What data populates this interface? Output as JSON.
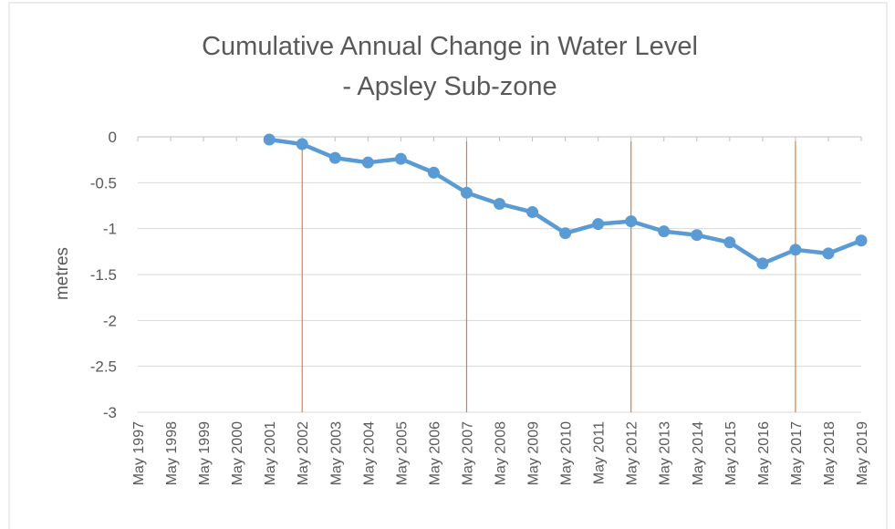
{
  "chart_data": {
    "type": "line",
    "title": [
      "Cumulative Annual Change in Water Level",
      "- Apsley Sub-zone"
    ],
    "y_label": "metres",
    "categories": [
      "May 1997",
      "May 1998",
      "May 1999",
      "May 2000",
      "May 2001",
      "May 2002",
      "May 2003",
      "May 2004",
      "May 2005",
      "May 2006",
      "May 2007",
      "May 2008",
      "May 2009",
      "May 2010",
      "May 2011",
      "May 2012",
      "May 2013",
      "May 2014",
      "May 2015",
      "May 2016",
      "May 2017",
      "May 2018",
      "May 2019"
    ],
    "series": [
      {
        "name": "Water Level",
        "color": "#5b9bd5",
        "values": [
          null,
          null,
          null,
          null,
          -0.03,
          -0.08,
          -0.23,
          -0.28,
          -0.24,
          -0.39,
          -0.61,
          -0.73,
          -0.82,
          -1.05,
          -0.95,
          -0.92,
          -1.03,
          -1.07,
          -1.15,
          -1.38,
          -1.23,
          -1.27,
          -1.13
        ]
      }
    ],
    "reference_lines": {
      "color": "#e07b39",
      "categories": [
        "May 2002",
        "May 2007",
        "May 2012",
        "May 2017"
      ]
    },
    "ylim": [
      -3,
      0
    ],
    "yticks": [
      0,
      -0.5,
      -1,
      -1.5,
      -2,
      -2.5,
      -3
    ],
    "grid": true
  }
}
